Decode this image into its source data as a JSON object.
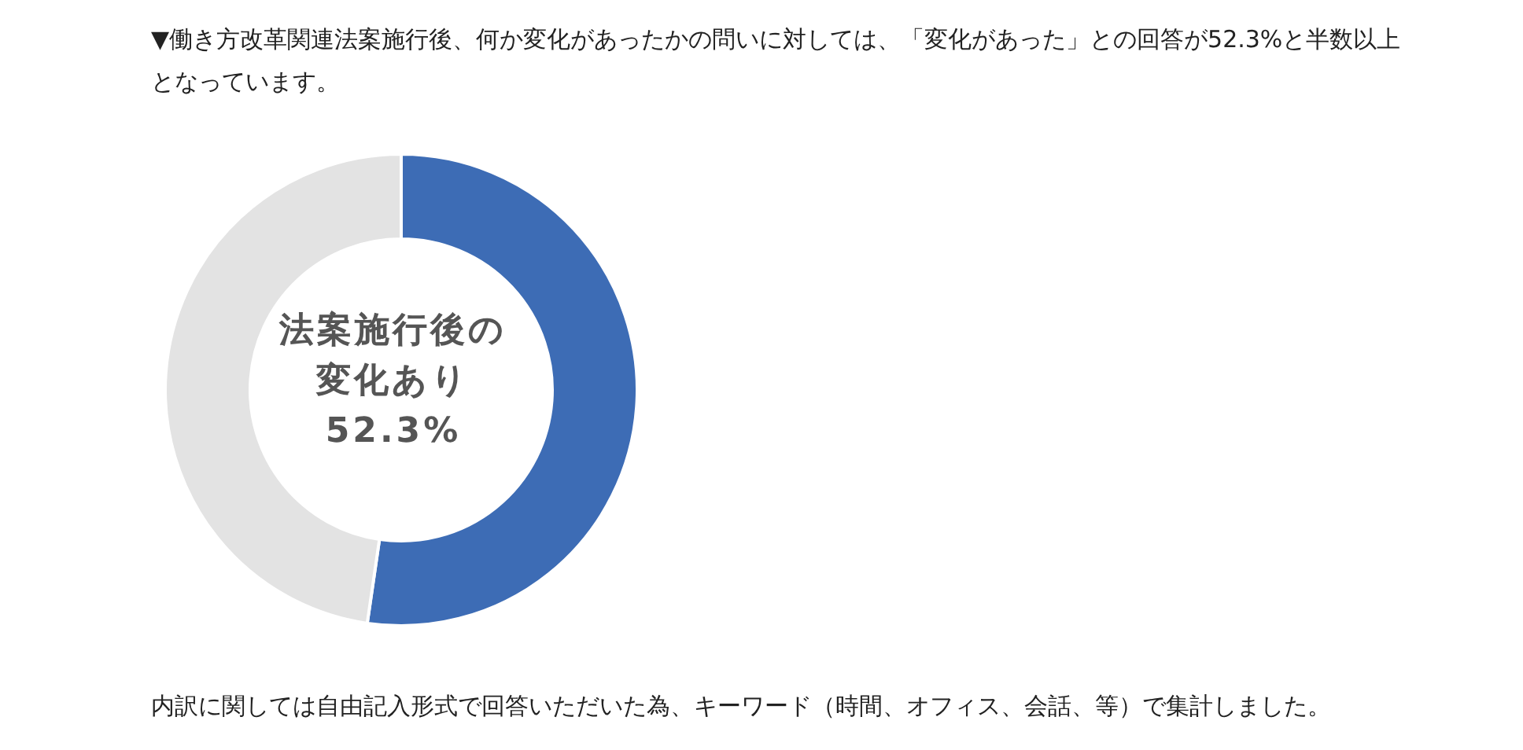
{
  "chart_data": {
    "type": "donut",
    "title": "▼働き方改革関連法案施行後、何か変化があったかの問いに対しては、「変化があった」との回答が52.3%と半数以上となっています。",
    "categories": [
      "法案施行後の変化あり",
      null
    ],
    "values": [
      52.3,
      47.7
    ],
    "colors": [
      "#3d6cb5",
      "#e3e3e3"
    ],
    "value_labels": [
      "52.3%",
      null
    ],
    "annotations": [
      "内訳に関しては自由記入形式で回答いただいた為、キーワード（時間、オフィス、会話、等）で集計しました。"
    ]
  }
}
